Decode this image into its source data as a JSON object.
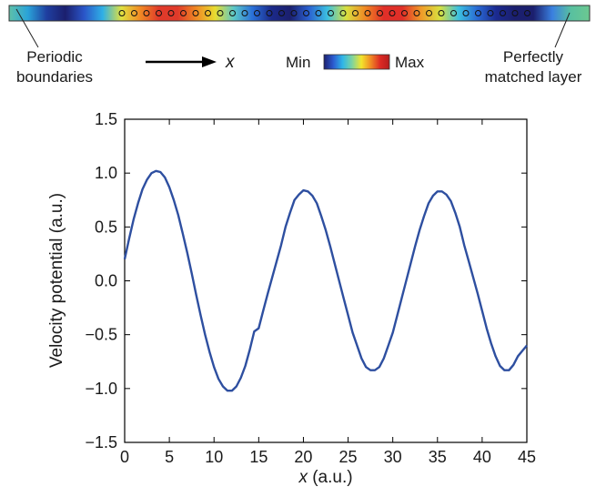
{
  "annotations": {
    "periodic_line1": "Periodic",
    "periodic_line2": "boundaries",
    "pml_line1": "Perfectly",
    "pml_line2": "matched layer",
    "arrow_label": "x",
    "colorbar_min": "Min",
    "colorbar_max": "Max"
  },
  "colors": {
    "line": "#2e4fa0",
    "colormap": [
      "#1b1f6e",
      "#2c5bd0",
      "#2fb6e8",
      "#7cd3a0",
      "#f2e52c",
      "#f08a24",
      "#dd2a24",
      "#b51d1d"
    ],
    "field_strip": [
      "#5ec0a8",
      "#2aa3d9",
      "#1f3fa0",
      "#1b1f6e",
      "#2a55c8",
      "#2fb0e6",
      "#e0e040",
      "#f08a24",
      "#e03a2a",
      "#e03a2a",
      "#f08a24",
      "#e8dc30",
      "#5cc8c8",
      "#2a70d8",
      "#1b2a8a",
      "#1b1f6e",
      "#2a60d0",
      "#3cc0e0",
      "#d8e040",
      "#f08a24",
      "#e02f28",
      "#e02f28",
      "#f09a28",
      "#d8e040",
      "#3cc0e0",
      "#2a6ad4",
      "#1b2a90",
      "#1b1f6e",
      "#1b1f6e",
      "#3a80e0",
      "#58c0a0",
      "#6cc890"
    ]
  },
  "chart_data": {
    "type": "line",
    "title": "",
    "xlabel": "x (a.u.)",
    "ylabel": "Velocity potential (a.u.)",
    "xlim": [
      0,
      45
    ],
    "ylim": [
      -1.5,
      1.5
    ],
    "xticks": [
      "0",
      "5",
      "10",
      "15",
      "20",
      "25",
      "30",
      "35",
      "40",
      "45"
    ],
    "yticks": [
      "1.5",
      "1.0",
      "0.5",
      "0.0",
      "−0.5",
      "−1.0",
      "−1.5"
    ],
    "grid": false,
    "series": [
      {
        "x": [
          0,
          0.5,
          1,
          1.5,
          2,
          2.5,
          3,
          3.5,
          4,
          4.5,
          5,
          5.5,
          6,
          6.5,
          7,
          7.5,
          8,
          8.5,
          9,
          9.5,
          10,
          10.5,
          11,
          11.5,
          12,
          12.5,
          13,
          13.5,
          14,
          14.5,
          15,
          15.5,
          16,
          16.5,
          17,
          17.5,
          18,
          18.5,
          19,
          19.5,
          20,
          20.5,
          21,
          21.5,
          22,
          22.5,
          23,
          23.5,
          24,
          24.5,
          25,
          25.5,
          26,
          26.5,
          27,
          27.5,
          28,
          28.5,
          29,
          29.5,
          30,
          30.5,
          31,
          31.5,
          32,
          32.5,
          33,
          33.5,
          34,
          34.5,
          35,
          35.5,
          36,
          36.5,
          37,
          37.5,
          38,
          38.5,
          39,
          39.5,
          40,
          40.5,
          41,
          41.5,
          42,
          42.5,
          43,
          43.5,
          44,
          44.5,
          45
        ],
        "values": [
          0.2,
          0.39,
          0.57,
          0.72,
          0.85,
          0.94,
          1.0,
          1.02,
          1.01,
          0.96,
          0.87,
          0.75,
          0.61,
          0.44,
          0.26,
          0.07,
          -0.13,
          -0.32,
          -0.5,
          -0.66,
          -0.8,
          -0.91,
          -0.98,
          -1.02,
          -1.02,
          -0.98,
          -0.9,
          -0.79,
          -0.64,
          -0.47,
          -0.44,
          -0.28,
          -0.12,
          0.03,
          0.18,
          0.33,
          0.5,
          0.63,
          0.75,
          0.8,
          0.84,
          0.83,
          0.79,
          0.72,
          0.6,
          0.47,
          0.32,
          0.16,
          0.0,
          -0.16,
          -0.32,
          -0.48,
          -0.6,
          -0.72,
          -0.8,
          -0.83,
          -0.83,
          -0.8,
          -0.72,
          -0.6,
          -0.48,
          -0.32,
          -0.16,
          0.0,
          0.16,
          0.32,
          0.47,
          0.6,
          0.72,
          0.79,
          0.83,
          0.83,
          0.8,
          0.74,
          0.63,
          0.5,
          0.33,
          0.18,
          0.03,
          -0.12,
          -0.28,
          -0.44,
          -0.58,
          -0.7,
          -0.79,
          -0.83,
          -0.83,
          -0.78,
          -0.7,
          -0.65,
          -0.6
        ]
      }
    ]
  }
}
